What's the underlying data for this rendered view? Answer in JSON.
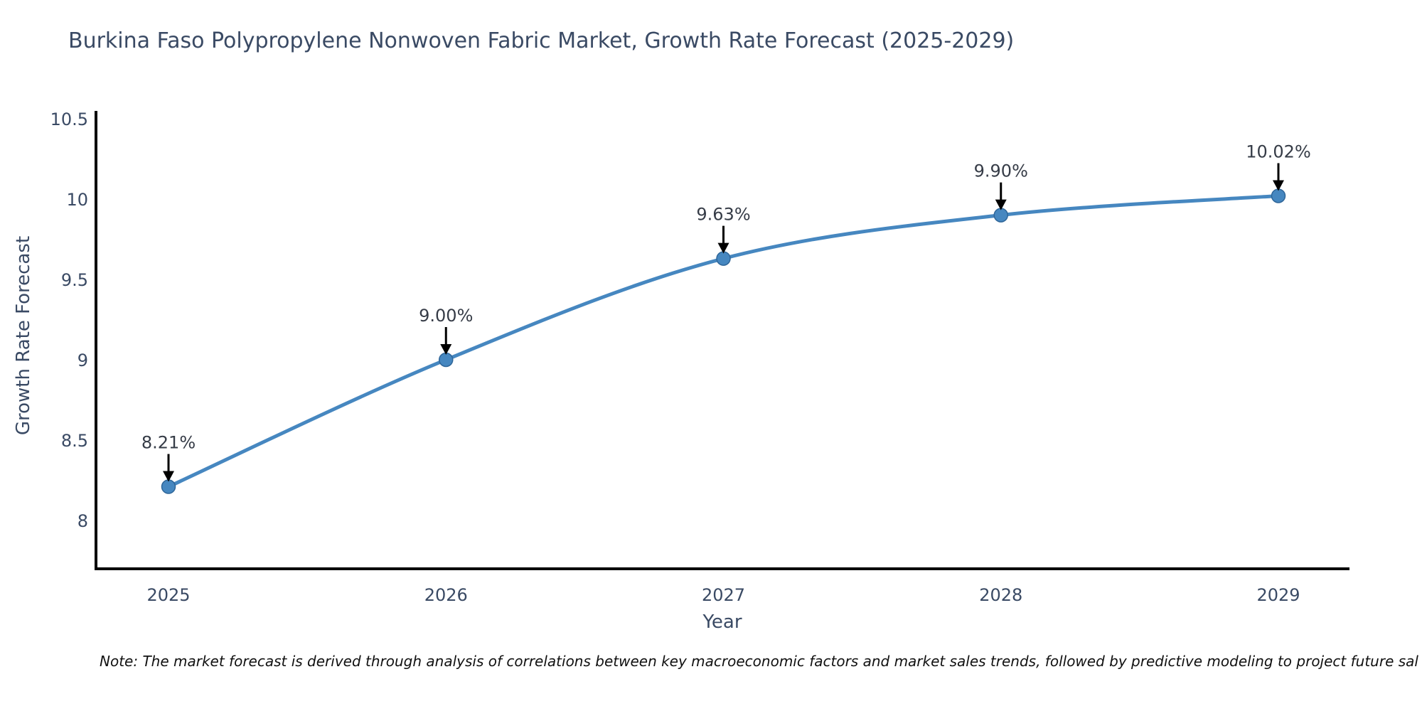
{
  "title": "Burkina Faso Polypropylene Nonwoven Fabric Market, Growth Rate Forecast (2025-2029)",
  "note": "Note: The market forecast is derived through analysis of correlations between key macroeconomic factors and market sales trends, followed by predictive modeling to project future sal",
  "chart_data": {
    "type": "line",
    "title": "Burkina Faso Polypropylene Nonwoven Fabric Market, Growth Rate Forecast (2025-2029)",
    "x": [
      2025,
      2026,
      2027,
      2028,
      2029
    ],
    "series": [
      {
        "name": "Growth Rate Forecast",
        "values": [
          8.21,
          9.0,
          9.63,
          9.9,
          10.02
        ],
        "point_labels": [
          "8.21%",
          "9.00%",
          "9.63%",
          "9.90%",
          "10.02%"
        ]
      }
    ],
    "xlabel": "Year",
    "ylabel": "Growth Rate Forecast",
    "xticks": [
      "2025",
      "2026",
      "2027",
      "2028",
      "2029"
    ],
    "yticks": [
      8,
      8.5,
      9,
      9.5,
      10,
      10.5
    ],
    "ylim": [
      7.7,
      10.55
    ],
    "grid": false,
    "legend_position": "none",
    "line_smooth": true,
    "colors": {
      "line": "#4687c0",
      "marker_fill": "#4687c0",
      "marker_edge": "#2f6699",
      "axis": "#000000",
      "tick_text": "#3a4a64",
      "annotation_text": "#363c47",
      "annotation_arrow": "#000000"
    }
  }
}
